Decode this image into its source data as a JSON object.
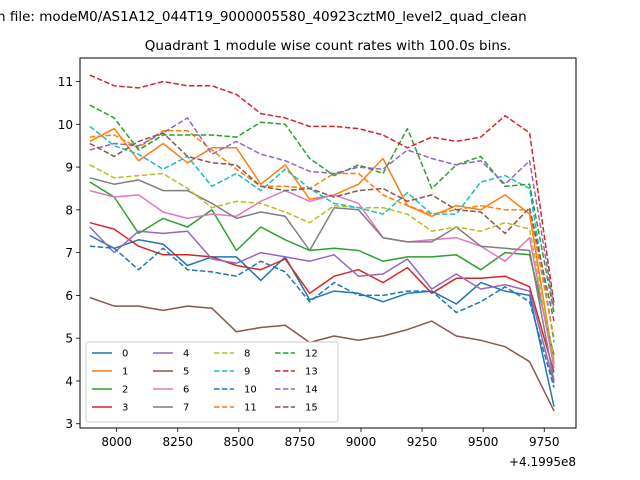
{
  "header": {
    "text": "n file: modeM0/AS1A12_044T19_9000005580_40923cztM0_level2_quad_clean"
  },
  "chart_data": {
    "type": "line",
    "title": "Quadrant 1 module wise count rates with 100.0s bins.",
    "xlabel": "",
    "ylabel": "",
    "offset_label": "+4.1995e8",
    "xlim": [
      7850,
      9880
    ],
    "ylim": [
      2.9,
      11.55
    ],
    "xticks": [
      8000,
      8250,
      8500,
      8750,
      9000,
      9250,
      9500,
      9750
    ],
    "yticks": [
      3,
      4,
      5,
      6,
      7,
      8,
      9,
      10,
      11
    ],
    "grid": false,
    "legend_position": "lower-left",
    "legend_columns": 4,
    "x": [
      7890,
      7990,
      8090,
      8190,
      8290,
      8390,
      8490,
      8590,
      8690,
      8790,
      8890,
      8990,
      9090,
      9190,
      9290,
      9390,
      9490,
      9590,
      9690,
      9790
    ],
    "series": [
      {
        "name": "0",
        "color": "#1f77b4",
        "dash": "solid",
        "values": [
          7.4,
          7.1,
          7.3,
          7.2,
          6.7,
          6.9,
          6.9,
          6.35,
          6.9,
          5.9,
          6.1,
          6.05,
          5.85,
          6.05,
          6.1,
          5.8,
          6.3,
          6.1,
          6.0,
          3.4
        ]
      },
      {
        "name": "1",
        "color": "#ff7f0e",
        "dash": "solid",
        "values": [
          9.6,
          9.9,
          9.15,
          9.55,
          9.1,
          9.45,
          9.45,
          8.6,
          9.05,
          8.25,
          8.35,
          8.6,
          9.2,
          8.1,
          7.85,
          8.1,
          8.0,
          8.35,
          7.9,
          4.4
        ]
      },
      {
        "name": "2",
        "color": "#2ca02c",
        "dash": "solid",
        "values": [
          8.65,
          8.3,
          7.45,
          7.8,
          7.6,
          8.0,
          7.05,
          7.6,
          7.3,
          7.05,
          7.1,
          7.05,
          6.8,
          6.9,
          6.9,
          6.95,
          6.6,
          7.0,
          6.95,
          4.6
        ]
      },
      {
        "name": "3",
        "color": "#d62728",
        "dash": "solid",
        "values": [
          7.7,
          7.55,
          7.15,
          6.95,
          6.95,
          6.9,
          6.7,
          6.6,
          6.85,
          6.05,
          6.45,
          6.6,
          6.3,
          6.65,
          6.05,
          6.4,
          6.4,
          6.45,
          6.2,
          4.2
        ]
      },
      {
        "name": "4",
        "color": "#9467bd",
        "dash": "solid",
        "values": [
          7.6,
          7.0,
          7.5,
          7.45,
          7.5,
          6.85,
          6.75,
          7.0,
          6.9,
          6.8,
          6.95,
          6.45,
          6.5,
          6.85,
          6.15,
          6.5,
          6.15,
          6.25,
          6.1,
          3.95
        ]
      },
      {
        "name": "5",
        "color": "#8c564b",
        "dash": "solid",
        "values": [
          5.95,
          5.75,
          5.75,
          5.65,
          5.75,
          5.7,
          5.15,
          5.25,
          5.3,
          4.9,
          5.05,
          4.95,
          5.05,
          5.2,
          5.4,
          5.05,
          4.95,
          4.8,
          4.45,
          3.3
        ]
      },
      {
        "name": "6",
        "color": "#e377c2",
        "dash": "solid",
        "values": [
          8.45,
          8.3,
          8.35,
          7.95,
          7.8,
          7.9,
          7.85,
          8.2,
          8.45,
          8.2,
          8.35,
          8.15,
          7.35,
          7.25,
          7.3,
          7.35,
          7.15,
          6.8,
          7.35,
          4.3
        ]
      },
      {
        "name": "7",
        "color": "#7f7f7f",
        "dash": "solid",
        "values": [
          8.75,
          8.6,
          8.7,
          8.45,
          8.45,
          8.15,
          7.8,
          7.95,
          7.85,
          7.05,
          8.05,
          8.0,
          7.35,
          7.25,
          7.25,
          7.6,
          7.15,
          7.1,
          7.05,
          4.0
        ]
      },
      {
        "name": "8",
        "color": "#bcbd22",
        "dash": "dashed",
        "values": [
          9.05,
          8.75,
          8.8,
          8.85,
          8.5,
          8.05,
          8.2,
          8.15,
          7.95,
          7.7,
          8.1,
          8.05,
          8.05,
          7.9,
          7.5,
          7.6,
          7.5,
          7.7,
          7.55,
          4.5
        ]
      },
      {
        "name": "9",
        "color": "#17becf",
        "dash": "dashed",
        "values": [
          9.95,
          9.5,
          9.3,
          8.95,
          9.25,
          8.55,
          8.85,
          8.45,
          8.95,
          8.5,
          8.15,
          8.05,
          7.9,
          8.4,
          7.9,
          7.9,
          8.65,
          8.8,
          8.5,
          4.9
        ]
      },
      {
        "name": "10",
        "color": "#1f77b4",
        "dash": "dashed",
        "values": [
          7.15,
          7.1,
          6.6,
          7.1,
          6.6,
          6.55,
          6.45,
          6.8,
          6.55,
          5.85,
          6.3,
          6.0,
          6.0,
          6.1,
          6.1,
          5.6,
          5.85,
          6.2,
          5.85,
          3.85
        ]
      },
      {
        "name": "11",
        "color": "#ff7f0e",
        "dash": "dashed",
        "values": [
          9.7,
          9.75,
          9.45,
          9.85,
          9.85,
          9.4,
          8.95,
          8.55,
          8.55,
          8.5,
          8.85,
          8.85,
          8.35,
          8.1,
          7.9,
          8.0,
          8.1,
          8.0,
          8.0,
          5.0
        ]
      },
      {
        "name": "12",
        "color": "#2ca02c",
        "dash": "dashed",
        "values": [
          10.45,
          10.15,
          9.4,
          9.75,
          9.75,
          9.75,
          9.7,
          10.05,
          10.0,
          9.2,
          8.8,
          9.05,
          8.85,
          9.9,
          8.5,
          9.05,
          9.25,
          8.55,
          8.6,
          5.6
        ]
      },
      {
        "name": "13",
        "color": "#d62728",
        "dash": "dashed",
        "values": [
          11.15,
          10.9,
          10.85,
          11.0,
          10.9,
          10.9,
          10.7,
          10.25,
          10.15,
          9.95,
          9.95,
          9.9,
          9.75,
          9.45,
          9.7,
          9.6,
          9.7,
          10.2,
          9.8,
          5.8
        ]
      },
      {
        "name": "14",
        "color": "#9467bd",
        "dash": "dashed",
        "values": [
          9.4,
          9.55,
          9.5,
          9.8,
          10.15,
          9.3,
          9.6,
          9.3,
          9.15,
          8.9,
          8.85,
          9.0,
          8.95,
          9.4,
          9.2,
          9.05,
          9.15,
          8.6,
          9.15,
          5.7
        ]
      },
      {
        "name": "15",
        "color": "#8c564b",
        "dash": "dashed",
        "values": [
          9.55,
          9.25,
          9.6,
          9.8,
          9.25,
          9.1,
          9.05,
          8.55,
          8.45,
          8.5,
          8.3,
          8.45,
          8.5,
          8.2,
          8.35,
          8.0,
          7.95,
          7.45,
          8.05,
          5.4
        ]
      }
    ]
  }
}
